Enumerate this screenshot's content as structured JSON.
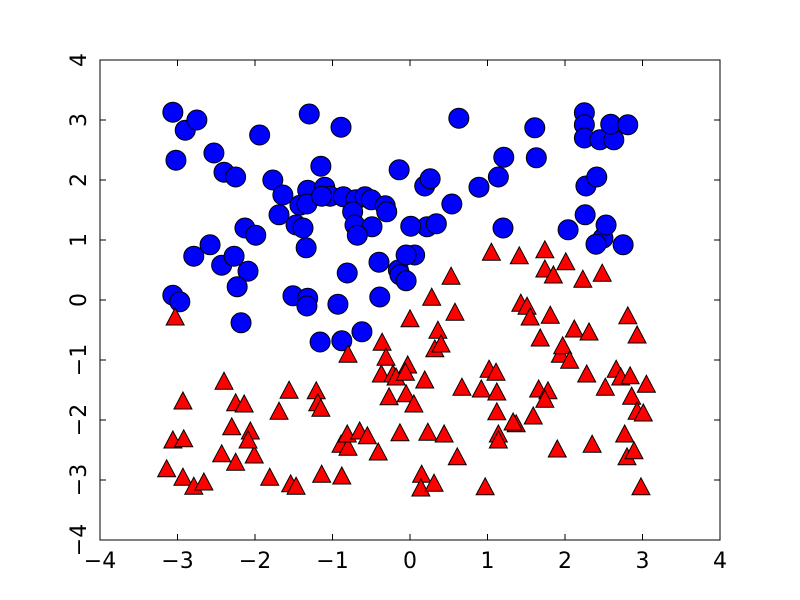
{
  "chart_data": {
    "type": "scatter",
    "xlim": [
      -4,
      4
    ],
    "ylim": [
      -4,
      4
    ],
    "xticks": [
      {
        "value": -4,
        "label": "−4"
      },
      {
        "value": -3,
        "label": "−3"
      },
      {
        "value": -2,
        "label": "−2"
      },
      {
        "value": -1,
        "label": "−1"
      },
      0,
      1,
      2,
      3,
      4
    ],
    "yticks": [
      {
        "value": -4,
        "label": "−4"
      },
      {
        "value": -3,
        "label": "−3"
      },
      {
        "value": -2,
        "label": "−2"
      },
      {
        "value": -1,
        "label": "−1"
      },
      0,
      1,
      2,
      3,
      4
    ],
    "grid": false,
    "series": [
      {
        "color": "#0000ff",
        "marker": "circle",
        "x": [
          -3.06,
          -2.9,
          -2.75,
          -3.02,
          -2.53,
          -2.4,
          -2.25,
          -1.94,
          -1.77,
          -1.64,
          -2.13,
          -1.99,
          -2.58,
          -2.79,
          -2.43,
          -2.27,
          -2.09,
          -2.23,
          -2.18,
          -3.06,
          -2.97,
          -1.3,
          -0.89,
          -1.15,
          -1.32,
          -1.1,
          -1.03,
          -1.42,
          -1.69,
          -1.47,
          -1.33,
          -1.14,
          -0.86,
          -0.7,
          -0.58,
          -0.74,
          -0.71,
          -0.5,
          -0.32,
          -0.3,
          -0.49,
          -0.68,
          -1.38,
          -1.34,
          -0.81,
          -0.4,
          -0.15,
          0.06,
          -0.13,
          -0.05,
          -0.39,
          -1.51,
          -1.32,
          -1.33,
          -0.93,
          -1.16,
          -0.88,
          -0.62,
          -0.14,
          0.19,
          0.26,
          0.22,
          0.34,
          0.54,
          0.01,
          -0.05,
          0.63,
          0.89,
          1.14,
          1.21,
          1.2,
          1.61,
          1.63,
          2.04,
          2.25,
          2.25,
          2.25,
          2.27,
          2.41,
          2.45,
          2.63,
          2.59,
          2.81,
          2.26,
          2.49,
          2.53,
          2.4,
          2.75
        ],
        "values": [
          3.13,
          2.83,
          3.0,
          2.33,
          2.45,
          2.13,
          2.05,
          2.75,
          2.0,
          1.75,
          1.2,
          1.08,
          0.92,
          0.73,
          0.58,
          0.73,
          0.48,
          0.22,
          -0.38,
          0.08,
          -0.03,
          3.1,
          2.88,
          2.23,
          1.83,
          1.88,
          1.73,
          1.58,
          1.42,
          1.25,
          1.6,
          1.73,
          1.72,
          1.67,
          1.72,
          1.47,
          1.25,
          1.67,
          1.57,
          1.47,
          1.22,
          1.08,
          1.2,
          0.87,
          0.45,
          0.63,
          0.5,
          0.75,
          0.42,
          0.32,
          0.05,
          0.07,
          0.03,
          -0.1,
          -0.07,
          -0.7,
          -0.68,
          -0.53,
          2.17,
          1.9,
          2.02,
          1.22,
          1.27,
          1.6,
          1.23,
          0.75,
          3.03,
          1.88,
          2.05,
          2.38,
          1.2,
          2.87,
          2.37,
          1.17,
          3.12,
          2.92,
          2.7,
          1.9,
          2.05,
          2.67,
          2.67,
          2.93,
          2.92,
          1.42,
          1.03,
          1.25,
          0.93,
          0.92
        ]
      },
      {
        "color": "#ff0000",
        "marker": "triangle",
        "x": [
          -3.03,
          -2.93,
          -3.06,
          -2.92,
          -3.14,
          -2.93,
          -2.79,
          -2.66,
          -2.4,
          -2.25,
          -2.3,
          -2.43,
          -2.25,
          -2.14,
          -2.06,
          -2.01,
          -2.09,
          -1.81,
          -1.69,
          -1.56,
          -1.54,
          -1.47,
          -1.21,
          -1.19,
          -1.15,
          -1.14,
          -0.88,
          -0.8,
          -0.89,
          -0.8,
          -0.81,
          -0.65,
          -0.55,
          -0.41,
          -0.36,
          -0.31,
          -0.37,
          -0.22,
          -0.27,
          -0.18,
          0.0,
          -0.03,
          -0.06,
          -0.05,
          0.05,
          -0.13,
          0.19,
          0.15,
          0.14,
          0.31,
          0.23,
          0.28,
          0.36,
          0.32,
          0.4,
          0.58,
          0.53,
          0.44,
          0.61,
          0.67,
          0.92,
          1.05,
          1.02,
          1.11,
          1.12,
          1.12,
          1.14,
          1.14,
          0.97,
          1.41,
          1.37,
          1.43,
          1.51,
          1.55,
          1.59,
          1.68,
          1.66,
          1.74,
          1.78,
          1.74,
          1.85,
          1.74,
          1.81,
          1.9,
          1.94,
          1.97,
          2.01,
          2.12,
          2.31,
          2.28,
          2.23,
          2.35,
          2.48,
          2.52,
          2.66,
          2.77,
          2.8,
          2.72,
          2.84,
          2.81,
          2.93,
          2.89,
          2.86,
          2.93,
          3.01,
          3.05,
          2.98,
          1.33,
          2.06
        ],
        "values": [
          -0.3,
          -1.7,
          -2.35,
          -2.33,
          -2.83,
          -2.97,
          -3.12,
          -3.05,
          -1.37,
          -1.73,
          -2.13,
          -2.58,
          -2.72,
          -1.75,
          -2.2,
          -2.6,
          -2.35,
          -2.97,
          -1.87,
          -1.52,
          -3.08,
          -3.12,
          -1.53,
          -1.73,
          -1.82,
          -2.92,
          -2.95,
          -0.92,
          -2.42,
          -2.47,
          -2.25,
          -2.2,
          -2.28,
          -2.55,
          -0.72,
          -0.97,
          -1.25,
          -1.25,
          -1.63,
          -1.3,
          -0.33,
          -1.1,
          -1.22,
          -1.58,
          -1.75,
          -2.23,
          -1.35,
          -2.92,
          -3.15,
          -3.07,
          -2.22,
          0.03,
          -0.52,
          -0.83,
          -0.75,
          -0.22,
          0.38,
          -2.25,
          -2.63,
          -1.47,
          -1.5,
          0.78,
          -1.17,
          -1.22,
          -1.55,
          -1.88,
          -2.25,
          -2.35,
          -3.13,
          0.72,
          -2.08,
          -0.07,
          -0.12,
          -0.3,
          -1.95,
          -0.65,
          -1.5,
          0.5,
          -1.53,
          -1.67,
          0.4,
          0.82,
          -0.27,
          -2.5,
          -0.92,
          -0.78,
          0.62,
          -0.5,
          -0.55,
          -1.25,
          0.33,
          -2.42,
          0.43,
          -1.47,
          -1.17,
          -2.25,
          -2.63,
          -1.3,
          -1.28,
          -0.28,
          -0.6,
          -2.53,
          -1.62,
          -1.87,
          -1.9,
          -1.42,
          -3.13,
          -2.05,
          -1.02
        ]
      }
    ]
  }
}
